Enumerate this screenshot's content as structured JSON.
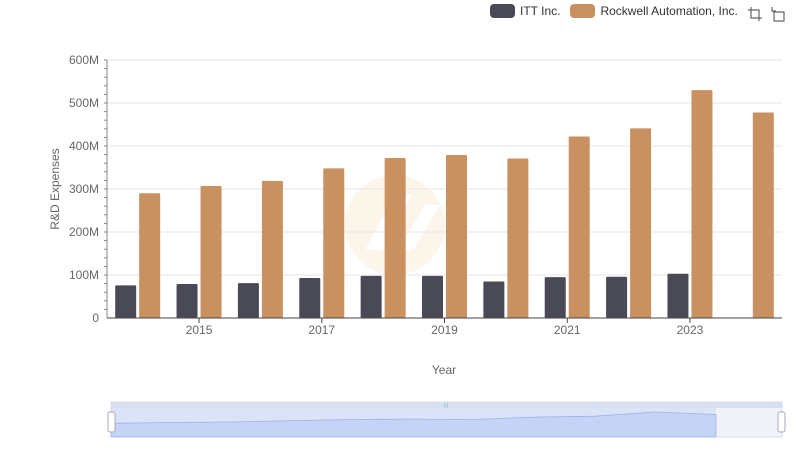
{
  "chart_data": {
    "type": "bar",
    "xlabel": "Year",
    "ylabel": "R&D Expenses",
    "ylim": [
      0,
      600000000
    ],
    "yticks": [
      "0",
      "100M",
      "200M",
      "300M",
      "400M",
      "500M",
      "600M"
    ],
    "categories": [
      "2014",
      "2015",
      "2016",
      "2017",
      "2018",
      "2019",
      "2020",
      "2021",
      "2022",
      "2023",
      "2024"
    ],
    "xtick_labels": [
      "2015",
      "2017",
      "2019",
      "2021",
      "2023"
    ],
    "grid": true,
    "legend_position": "top-right",
    "series": [
      {
        "name": "ITT Inc.",
        "color": "#4a4a56",
        "values": [
          76000000,
          79000000,
          81000000,
          93000000,
          98000000,
          98000000,
          85000000,
          95000000,
          96000000,
          103000000,
          null
        ]
      },
      {
        "name": "Rockwell Automation, Inc.",
        "color": "#c99160",
        "values": [
          290000000,
          307000000,
          319000000,
          348000000,
          372000000,
          379000000,
          371000000,
          422000000,
          441000000,
          530000000,
          478000000
        ]
      }
    ]
  },
  "toolbox": {
    "zoom_icon": "zoom-icon",
    "restore_icon": "restore-icon"
  },
  "slider": {
    "handle_label": "|||"
  }
}
